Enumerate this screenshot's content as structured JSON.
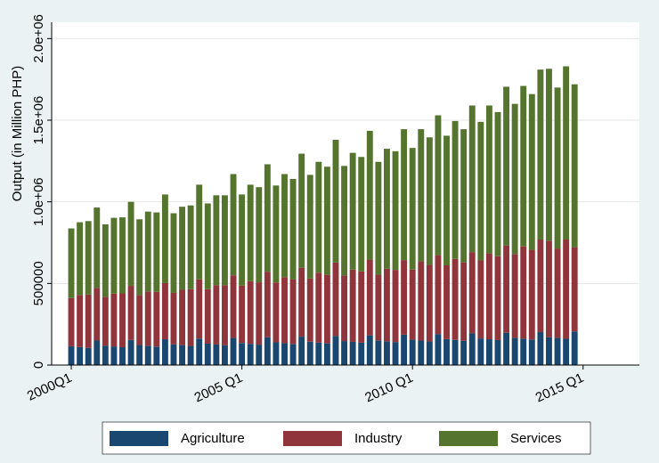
{
  "chart_data": {
    "type": "stacked_bar",
    "y_label": "Output (in Million PHP)",
    "ylim": [
      0,
      2100000
    ],
    "yticks": [
      0,
      500000,
      {
        "value": 1000000,
        "label": "1.0e+06"
      },
      {
        "value": 1500000,
        "label": "1.5e+06"
      },
      {
        "value": 2000000,
        "label": "2.0e+06"
      }
    ],
    "xlim": [
      -2.3,
      66.6
    ],
    "xticks": [
      {
        "value": 0,
        "label": "2000Q1"
      },
      {
        "value": 20,
        "label": "2005 Q1"
      },
      {
        "value": 40,
        "label": "2010 Q1"
      },
      {
        "value": 60,
        "label": "2015 Q1"
      }
    ],
    "grid": true,
    "legend": "bottom",
    "series": [
      {
        "name": "Agriculture",
        "color": "#1a476f",
        "values": [
          115000,
          110000,
          105000,
          150000,
          119000,
          114000,
          109000,
          154000,
          123000,
          118000,
          113000,
          158000,
          127000,
          122000,
          117000,
          162000,
          131000,
          126000,
          121000,
          166000,
          135000,
          130000,
          125000,
          170000,
          139000,
          134000,
          129000,
          174000,
          143000,
          138000,
          133000,
          178000,
          147000,
          142000,
          137000,
          182000,
          151000,
          146000,
          141000,
          186000,
          155000,
          150000,
          145000,
          190000,
          159000,
          154000,
          149000,
          194000,
          163000,
          158000,
          153000,
          198000,
          167000,
          162000,
          157000,
          202000,
          171000,
          166000,
          161000,
          206000
        ]
      },
      {
        "name": "Industry",
        "color": "#90353b",
        "values": [
          295000,
          319000,
          327000,
          323000,
          299000,
          323000,
          330000,
          331000,
          306000,
          333000,
          336000,
          344000,
          315000,
          339000,
          348000,
          363000,
          334000,
          363000,
          368000,
          384000,
          351000,
          384000,
          382000,
          402000,
          367000,
          404000,
          395000,
          422000,
          387000,
          428000,
          420000,
          450000,
          402000,
          443000,
          437000,
          464000,
          403000,
          444000,
          442000,
          457000,
          430000,
          486000,
          469000,
          483000,
          452000,
          496000,
          480000,
          498000,
          478000,
          526000,
          514000,
          535000,
          513000,
          565000,
          549000,
          567000,
          591000,
          548000,
          608000,
          516000
        ]
      },
      {
        "name": "Services",
        "color": "#55752f",
        "values": [
          427000,
          446000,
          450000,
          492000,
          444000,
          465000,
          466000,
          515000,
          464000,
          489000,
          486000,
          543000,
          488000,
          509000,
          513000,
          580000,
          525000,
          551000,
          551000,
          620000,
          559000,
          591000,
          583000,
          658000,
          594000,
          632000,
          616000,
          699000,
          635000,
          679000,
          662000,
          752000,
          671000,
          715000,
          701000,
          789000,
          691000,
          735000,
          727000,
          802000,
          745000,
          809000,
          781000,
          857000,
          794000,
          845000,
          816000,
          898000,
          849000,
          906000,
          883000,
          972000,
          920000,
          983000,
          954000,
          1041000,
          1053000,
          986000,
          1061000,
          998000
        ]
      }
    ]
  }
}
